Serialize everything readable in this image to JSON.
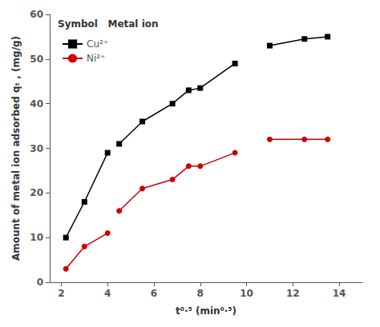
{
  "chart_data": {
    "type": "line",
    "xlabel": "t⁰·⁵ (min⁰·⁵)",
    "ylabel": "Amount of metal ion adsorbed qₜ , (mg/g)",
    "xlim": [
      1.5,
      15.0
    ],
    "ylim": [
      0,
      60
    ],
    "xticks": [
      2,
      4,
      6,
      8,
      10,
      12,
      14
    ],
    "yticks": [
      0,
      10,
      20,
      30,
      40,
      50,
      60
    ],
    "grid": false,
    "legend": "upper left",
    "legend_title": "Symbol   Metal ion",
    "series": [
      {
        "name": "Cu²⁺",
        "color": "#000000",
        "marker": "square",
        "line_style": "solid",
        "x": [
          2.2,
          3.0,
          4.0
        ],
        "values": [
          10,
          18,
          29
        ]
      },
      {
        "name": "Cu²⁺",
        "color": "#000000",
        "marker": "square",
        "line_style": "solid",
        "x": [
          4.5,
          5.5,
          6.8,
          7.5,
          8.0,
          9.5
        ],
        "values": [
          31,
          36,
          40,
          43,
          43.5,
          49
        ]
      },
      {
        "name": "Cu²⁺",
        "color": "#000000",
        "marker": "square",
        "line_style": "solid",
        "x": [
          11.0,
          12.5,
          13.5
        ],
        "values": [
          53,
          54.5,
          55
        ]
      },
      {
        "name": "Ni²⁺",
        "color": "#cc0000",
        "marker": "circle",
        "line_style": "solid",
        "x": [
          2.2,
          3.0,
          4.0
        ],
        "values": [
          3,
          8,
          11
        ]
      },
      {
        "name": "Ni²⁺",
        "color": "#cc0000",
        "marker": "circle",
        "line_style": "solid",
        "x": [
          4.5,
          5.5,
          6.8,
          7.5,
          8.0,
          9.5
        ],
        "values": [
          16,
          21,
          23,
          26,
          26,
          29
        ]
      },
      {
        "name": "Ni²⁺",
        "color": "#cc0000",
        "marker": "circle",
        "line_style": "solid",
        "x": [
          11.0,
          12.5,
          13.5
        ],
        "values": [
          32,
          32,
          32
        ]
      }
    ]
  }
}
